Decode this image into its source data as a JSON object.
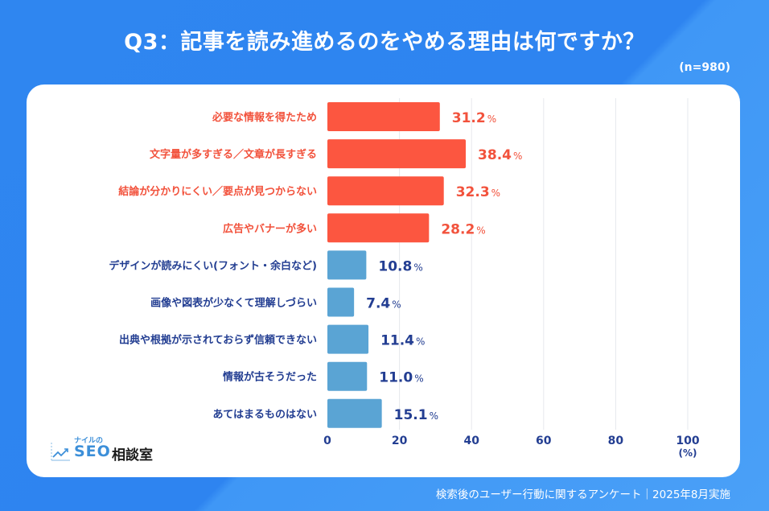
{
  "header": {
    "title": "Q3：記事を読み進めるのをやめる理由は何ですか？",
    "sample_size": "(n=980)"
  },
  "footer": {
    "note": "検索後のユーザー行動に関するアンケート｜2025年8月実施"
  },
  "logo": {
    "small_text": "ナイルの",
    "brand": "SEO",
    "name": "相談室",
    "icon": "chart-trend-icon"
  },
  "colors": {
    "highlight_bar": "#fc5640",
    "highlight_text": "#f2523c",
    "normal_bar": "#5aa4d4",
    "normal_text": "#233e92",
    "grid": "#e6e8ec",
    "background": "#2f86f0"
  },
  "chart_data": {
    "type": "bar",
    "orientation": "horizontal",
    "title": "Q3：記事を読み進めるのをやめる理由は何ですか？",
    "xlabel": "(%)",
    "ylabel": "",
    "xlim": [
      0,
      100
    ],
    "xticks": [
      0,
      20,
      40,
      60,
      80,
      100
    ],
    "grid": true,
    "value_suffix": "%",
    "categories": [
      "必要な情報を得たため",
      "文字量が多すぎる／文章が長すぎる",
      "結論が分かりにくい／要点が見つからない",
      "広告やバナーが多い",
      "デザインが読みにくい(フォント・余白など)",
      "画像や図表が少なくて理解しづらい",
      "出典や根拠が示されておらず信頼できない",
      "情報が古そうだった",
      "あてはまるものはない"
    ],
    "values": [
      31.2,
      38.4,
      32.3,
      28.2,
      10.8,
      7.4,
      11.4,
      11.0,
      15.1
    ],
    "highlighted": [
      true,
      true,
      true,
      true,
      false,
      false,
      false,
      false,
      false
    ]
  }
}
